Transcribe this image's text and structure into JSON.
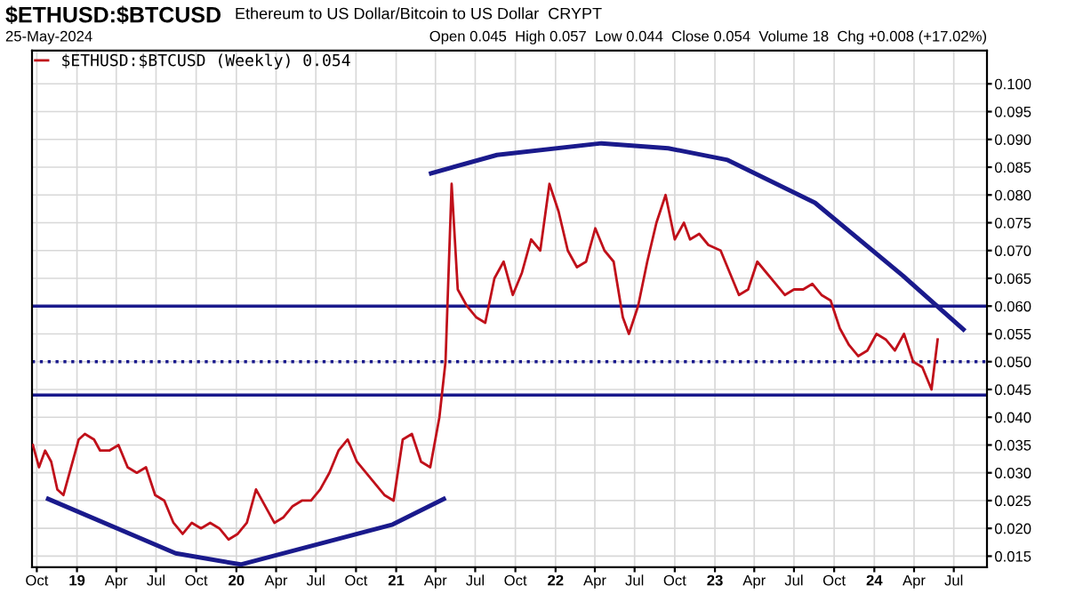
{
  "chart_data": {
    "type": "line",
    "title": "$ETHUSD:$BTCUSD",
    "subtitle": "Ethereum to US Dollar/Bitcoin to US Dollar  CRYPT",
    "annotations": [
      "25-May-2024",
      "Open 0.045  High 0.057  Low 0.044  Close 0.054  Volume 18  Chg +0.008 (+17.02%)"
    ],
    "xlim": [
      "2018-09-20",
      "2024-09-15"
    ],
    "ylim": [
      0.013,
      0.106
    ],
    "yticks": [
      {
        "value": 0.015,
        "label": "0.015"
      },
      {
        "value": 0.02,
        "label": "0.020"
      },
      {
        "value": 0.025,
        "label": "0.025"
      },
      {
        "value": 0.03,
        "label": "0.030"
      },
      {
        "value": 0.035,
        "label": "0.035"
      },
      {
        "value": 0.04,
        "label": "0.040"
      },
      {
        "value": 0.045,
        "label": "0.045"
      },
      {
        "value": 0.05,
        "label": "0.050"
      },
      {
        "value": 0.055,
        "label": "0.055"
      },
      {
        "value": 0.06,
        "label": "0.060"
      },
      {
        "value": 0.065,
        "label": "0.065"
      },
      {
        "value": 0.07,
        "label": "0.070"
      },
      {
        "value": 0.075,
        "label": "0.075"
      },
      {
        "value": 0.08,
        "label": "0.080"
      },
      {
        "value": 0.085,
        "label": "0.085"
      },
      {
        "value": 0.09,
        "label": "0.090"
      },
      {
        "value": 0.095,
        "label": "0.095"
      },
      {
        "value": 0.1,
        "label": "0.100"
      }
    ],
    "xticks": [
      {
        "value": "2018-10-01",
        "label": "Oct"
      },
      {
        "value": "2019-01-01",
        "label": "19"
      },
      {
        "value": "2019-04-01",
        "label": "Apr"
      },
      {
        "value": "2019-07-01",
        "label": "Jul"
      },
      {
        "value": "2019-10-01",
        "label": "Oct"
      },
      {
        "value": "2020-01-01",
        "label": "20"
      },
      {
        "value": "2020-04-01",
        "label": "Apr"
      },
      {
        "value": "2020-07-01",
        "label": "Jul"
      },
      {
        "value": "2020-10-01",
        "label": "Oct"
      },
      {
        "value": "2021-01-01",
        "label": "21"
      },
      {
        "value": "2021-04-01",
        "label": "Apr"
      },
      {
        "value": "2021-07-01",
        "label": "Jul"
      },
      {
        "value": "2021-10-01",
        "label": "Oct"
      },
      {
        "value": "2022-01-01",
        "label": "22"
      },
      {
        "value": "2022-04-01",
        "label": "Apr"
      },
      {
        "value": "2022-07-01",
        "label": "Jul"
      },
      {
        "value": "2022-10-01",
        "label": "Oct"
      },
      {
        "value": "2023-01-01",
        "label": "23"
      },
      {
        "value": "2023-04-01",
        "label": "Apr"
      },
      {
        "value": "2023-07-01",
        "label": "Jul"
      },
      {
        "value": "2023-10-01",
        "label": "Oct"
      },
      {
        "value": "2024-01-01",
        "label": "24"
      },
      {
        "value": "2024-04-01",
        "label": "Apr"
      },
      {
        "value": "2024-07-01",
        "label": "Jul"
      }
    ],
    "grid": true,
    "legend": "top left",
    "ref_lines": [
      {
        "axis": "y",
        "value": 0.06,
        "color": "#1a1a8c",
        "line_style": "solid"
      },
      {
        "axis": "y",
        "value": 0.05,
        "color": "#1a1a8c",
        "line_style": "dotted"
      },
      {
        "axis": "y",
        "value": 0.044,
        "color": "#1a1a8c",
        "line_style": "solid"
      }
    ],
    "series": [
      {
        "name": "$ETHUSD:$BTCUSD (Weekly) 0.054",
        "color": "#c0101a",
        "x": [
          "2018-09-22",
          "2018-10-06",
          "2018-10-20",
          "2018-11-03",
          "2018-11-17",
          "2018-12-01",
          "2018-12-15",
          "2019-01-05",
          "2019-01-19",
          "2019-02-09",
          "2019-02-23",
          "2019-03-16",
          "2019-04-06",
          "2019-04-27",
          "2019-05-18",
          "2019-06-08",
          "2019-06-29",
          "2019-07-20",
          "2019-08-10",
          "2019-08-31",
          "2019-09-21",
          "2019-10-12",
          "2019-11-02",
          "2019-11-23",
          "2019-12-14",
          "2020-01-04",
          "2020-01-25",
          "2020-02-15",
          "2020-03-07",
          "2020-03-28",
          "2020-04-18",
          "2020-05-09",
          "2020-05-30",
          "2020-06-20",
          "2020-07-11",
          "2020-08-01",
          "2020-08-22",
          "2020-09-12",
          "2020-10-03",
          "2020-10-24",
          "2020-11-14",
          "2020-12-05",
          "2020-12-26",
          "2021-01-16",
          "2021-02-06",
          "2021-02-27",
          "2021-03-20",
          "2021-04-10",
          "2021-04-24",
          "2021-05-08",
          "2021-05-22",
          "2021-06-12",
          "2021-07-03",
          "2021-07-24",
          "2021-08-14",
          "2021-09-04",
          "2021-09-25",
          "2021-10-16",
          "2021-11-06",
          "2021-11-27",
          "2021-12-18",
          "2022-01-08",
          "2022-01-29",
          "2022-02-19",
          "2022-03-12",
          "2022-04-02",
          "2022-04-23",
          "2022-05-14",
          "2022-06-04",
          "2022-06-18",
          "2022-07-09",
          "2022-07-30",
          "2022-08-20",
          "2022-09-10",
          "2022-10-01",
          "2022-10-22",
          "2022-11-05",
          "2022-11-26",
          "2022-12-17",
          "2023-01-14",
          "2023-02-04",
          "2023-02-25",
          "2023-03-18",
          "2023-04-08",
          "2023-04-29",
          "2023-05-20",
          "2023-06-10",
          "2023-07-01",
          "2023-07-22",
          "2023-08-12",
          "2023-09-02",
          "2023-09-23",
          "2023-10-14",
          "2023-11-04",
          "2023-11-25",
          "2023-12-16",
          "2024-01-06",
          "2024-01-27",
          "2024-02-17",
          "2024-03-09",
          "2024-03-30",
          "2024-04-20",
          "2024-05-11",
          "2024-05-25"
        ],
        "values": [
          0.035,
          0.031,
          0.034,
          0.032,
          0.027,
          0.026,
          0.03,
          0.036,
          0.037,
          0.036,
          0.034,
          0.034,
          0.035,
          0.031,
          0.03,
          0.031,
          0.026,
          0.025,
          0.021,
          0.019,
          0.021,
          0.02,
          0.021,
          0.02,
          0.018,
          0.019,
          0.021,
          0.027,
          0.024,
          0.021,
          0.022,
          0.024,
          0.025,
          0.025,
          0.027,
          0.03,
          0.034,
          0.036,
          0.032,
          0.03,
          0.028,
          0.026,
          0.025,
          0.036,
          0.037,
          0.032,
          0.031,
          0.04,
          0.05,
          0.082,
          0.063,
          0.06,
          0.058,
          0.057,
          0.065,
          0.068,
          0.062,
          0.066,
          0.072,
          0.07,
          0.082,
          0.077,
          0.07,
          0.067,
          0.068,
          0.074,
          0.07,
          0.068,
          0.058,
          0.055,
          0.06,
          0.068,
          0.075,
          0.08,
          0.072,
          0.075,
          0.072,
          0.073,
          0.071,
          0.07,
          0.066,
          0.062,
          0.063,
          0.068,
          0.066,
          0.064,
          0.062,
          0.063,
          0.063,
          0.064,
          0.062,
          0.061,
          0.056,
          0.053,
          0.051,
          0.052,
          0.055,
          0.054,
          0.052,
          0.055,
          0.05,
          0.049,
          0.045,
          0.054
        ]
      },
      {
        "type": "line",
        "color": "#1a1a8c",
        "x": [
          "2018-10-27",
          "2019-08-15",
          "2020-01-11",
          "2020-12-24",
          "2021-04-20"
        ],
        "values": [
          0.0253,
          0.0155,
          0.0135,
          0.0207,
          0.0253
        ]
      },
      {
        "type": "line",
        "color": "#1a1a8c",
        "x": [
          "2021-03-22",
          "2021-08-20",
          "2022-04-16",
          "2022-09-16",
          "2023-01-30",
          "2023-08-18",
          "2024-03-06",
          "2024-07-23"
        ],
        "values": [
          0.0839,
          0.0872,
          0.0893,
          0.0884,
          0.0863,
          0.0786,
          0.0655,
          0.0558
        ]
      }
    ]
  }
}
